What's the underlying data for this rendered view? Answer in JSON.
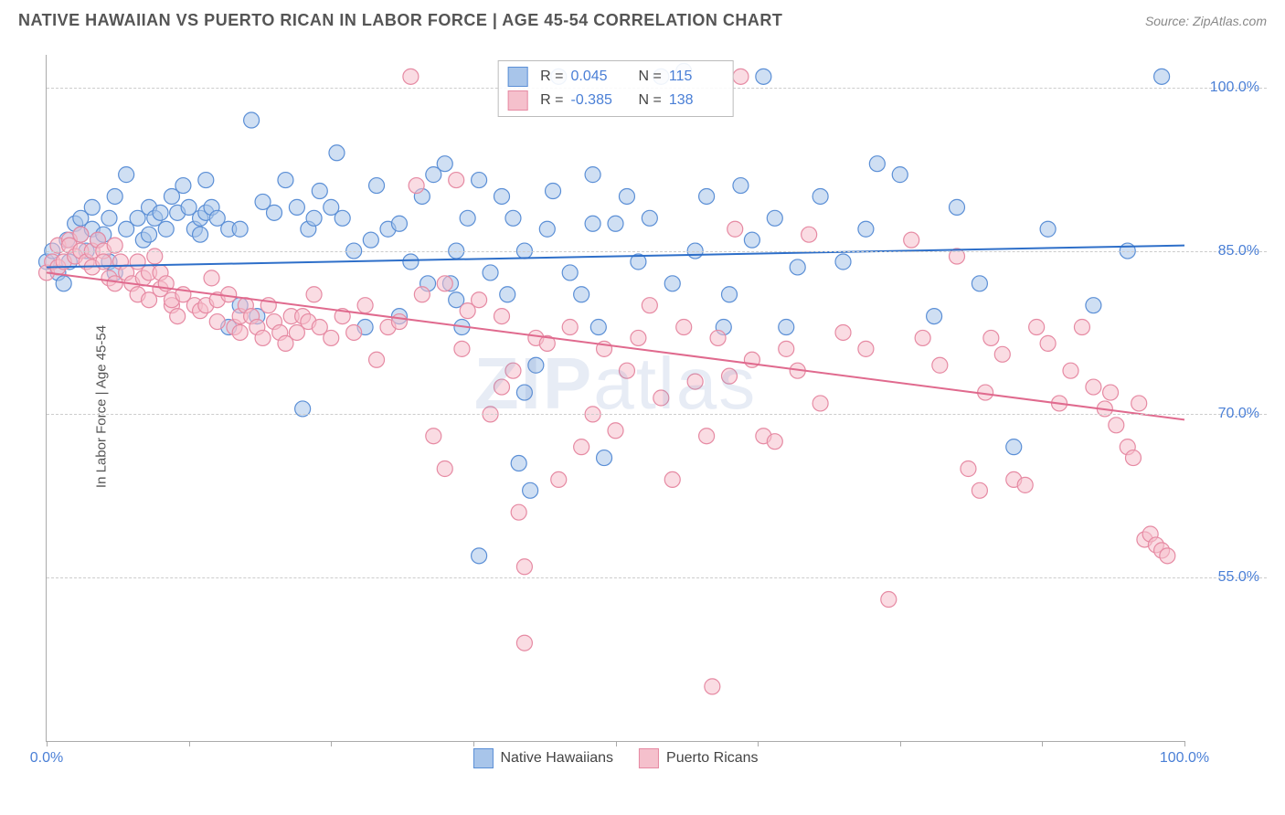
{
  "header": {
    "title": "NATIVE HAWAIIAN VS PUERTO RICAN IN LABOR FORCE | AGE 45-54 CORRELATION CHART",
    "source": "Source: ZipAtlas.com"
  },
  "chart": {
    "type": "scatter",
    "ylabel": "In Labor Force | Age 45-54",
    "xlim": [
      0,
      100
    ],
    "ylim": [
      40,
      103
    ],
    "xtick_labels": [
      {
        "pos": 0,
        "label": "0.0%"
      },
      {
        "pos": 100,
        "label": "100.0%"
      }
    ],
    "xtick_marks": [
      0,
      12.5,
      25,
      37.5,
      50,
      62.5,
      75,
      87.5,
      100
    ],
    "ytick_labels": [
      {
        "pos": 55,
        "label": "55.0%"
      },
      {
        "pos": 70,
        "label": "70.0%"
      },
      {
        "pos": 85,
        "label": "85.0%"
      },
      {
        "pos": 100,
        "label": "100.0%"
      }
    ],
    "grid_y": [
      55,
      70,
      85,
      100
    ],
    "grid_color": "#cccccc",
    "background_color": "#ffffff",
    "marker_radius": 8.5,
    "marker_opacity": 0.55,
    "line_width": 2,
    "series": [
      {
        "name": "Native Hawaiians",
        "color_fill": "#a8c5ea",
        "color_stroke": "#5b8fd6",
        "line_color": "#2e6fc9",
        "R": "0.045",
        "N": "115",
        "trend": {
          "x1": 0,
          "y1": 83.5,
          "x2": 100,
          "y2": 85.5
        },
        "points": [
          [
            0,
            84
          ],
          [
            0.5,
            85
          ],
          [
            1,
            83
          ],
          [
            1.5,
            82
          ],
          [
            1.8,
            86
          ],
          [
            2,
            84
          ],
          [
            2.5,
            87.5
          ],
          [
            3,
            86.5
          ],
          [
            3,
            88
          ],
          [
            3.5,
            85
          ],
          [
            4,
            87
          ],
          [
            4,
            89
          ],
          [
            4.5,
            86
          ],
          [
            5,
            86.5
          ],
          [
            5.5,
            88
          ],
          [
            5.5,
            84
          ],
          [
            6,
            90
          ],
          [
            6,
            83
          ],
          [
            7,
            87
          ],
          [
            7,
            92
          ],
          [
            8,
            88
          ],
          [
            8.5,
            86
          ],
          [
            9,
            89
          ],
          [
            9,
            86.5
          ],
          [
            9.5,
            88
          ],
          [
            10,
            88.5
          ],
          [
            10.5,
            87
          ],
          [
            11,
            90
          ],
          [
            11.5,
            88.5
          ],
          [
            12,
            91
          ],
          [
            12.5,
            89
          ],
          [
            13,
            87
          ],
          [
            13.5,
            86.5
          ],
          [
            13.5,
            88
          ],
          [
            14,
            88.5
          ],
          [
            14,
            91.5
          ],
          [
            14.5,
            89
          ],
          [
            15,
            88
          ],
          [
            16,
            87
          ],
          [
            16,
            78
          ],
          [
            17,
            87
          ],
          [
            17,
            80
          ],
          [
            18,
            97
          ],
          [
            18.5,
            79
          ],
          [
            19,
            89.5
          ],
          [
            20,
            88.5
          ],
          [
            21,
            91.5
          ],
          [
            22,
            89
          ],
          [
            22.5,
            70.5
          ],
          [
            23,
            87
          ],
          [
            23.5,
            88
          ],
          [
            24,
            90.5
          ],
          [
            25,
            89
          ],
          [
            25.5,
            94
          ],
          [
            26,
            88
          ],
          [
            27,
            85
          ],
          [
            28,
            78
          ],
          [
            28.5,
            86
          ],
          [
            29,
            91
          ],
          [
            30,
            87
          ],
          [
            31,
            79
          ],
          [
            31,
            87.5
          ],
          [
            32,
            84
          ],
          [
            33,
            90
          ],
          [
            33.5,
            82
          ],
          [
            34,
            92
          ],
          [
            35,
            93
          ],
          [
            35.5,
            82
          ],
          [
            36,
            85
          ],
          [
            36,
            80.5
          ],
          [
            36.5,
            78
          ],
          [
            37,
            88
          ],
          [
            38,
            57
          ],
          [
            38,
            91.5
          ],
          [
            39,
            83
          ],
          [
            40,
            90
          ],
          [
            40.5,
            81
          ],
          [
            41,
            88
          ],
          [
            41.5,
            65.5
          ],
          [
            42,
            85
          ],
          [
            42,
            72
          ],
          [
            42.5,
            63
          ],
          [
            43,
            74.5
          ],
          [
            44,
            87
          ],
          [
            44.5,
            90.5
          ],
          [
            45,
            101
          ],
          [
            46,
            83
          ],
          [
            47,
            81
          ],
          [
            48,
            92
          ],
          [
            48,
            87.5
          ],
          [
            48.5,
            78
          ],
          [
            49,
            66
          ],
          [
            50,
            87.5
          ],
          [
            51,
            90
          ],
          [
            52,
            84
          ],
          [
            53,
            88
          ],
          [
            54,
            101
          ],
          [
            55,
            82
          ],
          [
            56,
            101.5
          ],
          [
            57,
            85
          ],
          [
            58,
            90
          ],
          [
            59.5,
            78
          ],
          [
            60,
            81
          ],
          [
            61,
            91
          ],
          [
            62,
            86
          ],
          [
            63,
            101
          ],
          [
            64,
            88
          ],
          [
            65,
            78
          ],
          [
            66,
            83.5
          ],
          [
            68,
            90
          ],
          [
            70,
            84
          ],
          [
            72,
            87
          ],
          [
            73,
            93
          ],
          [
            75,
            92
          ],
          [
            78,
            79
          ],
          [
            80,
            89
          ],
          [
            82,
            82
          ],
          [
            85,
            67
          ],
          [
            88,
            87
          ],
          [
            92,
            80
          ],
          [
            95,
            85
          ],
          [
            98,
            101
          ]
        ]
      },
      {
        "name": "Puerto Ricans",
        "color_fill": "#f5c0cc",
        "color_stroke": "#e68aa3",
        "line_color": "#e06a8e",
        "R": "-0.385",
        "N": "138",
        "trend": {
          "x1": 0,
          "y1": 83,
          "x2": 100,
          "y2": 69.5
        },
        "points": [
          [
            0,
            83
          ],
          [
            0.5,
            84
          ],
          [
            1,
            83.5
          ],
          [
            1,
            85.5
          ],
          [
            1.5,
            84
          ],
          [
            2,
            86
          ],
          [
            2,
            85.5
          ],
          [
            2.5,
            84.5
          ],
          [
            3,
            85
          ],
          [
            3,
            86.5
          ],
          [
            3.5,
            84
          ],
          [
            4,
            85
          ],
          [
            4,
            83.5
          ],
          [
            4.5,
            86
          ],
          [
            5,
            85
          ],
          [
            5,
            84
          ],
          [
            5.5,
            82.5
          ],
          [
            6,
            85.5
          ],
          [
            6,
            82
          ],
          [
            6.5,
            84
          ],
          [
            7,
            83
          ],
          [
            7.5,
            82
          ],
          [
            8,
            81
          ],
          [
            8,
            84
          ],
          [
            8.5,
            82.5
          ],
          [
            9,
            83
          ],
          [
            9,
            80.5
          ],
          [
            9.5,
            84.5
          ],
          [
            10,
            83
          ],
          [
            10,
            81.5
          ],
          [
            10.5,
            82
          ],
          [
            11,
            80
          ],
          [
            11,
            80.5
          ],
          [
            11.5,
            79
          ],
          [
            12,
            81
          ],
          [
            13,
            80
          ],
          [
            13.5,
            79.5
          ],
          [
            14,
            80
          ],
          [
            14.5,
            82.5
          ],
          [
            15,
            80.5
          ],
          [
            15,
            78.5
          ],
          [
            16,
            81
          ],
          [
            16.5,
            78
          ],
          [
            17,
            79
          ],
          [
            17,
            77.5
          ],
          [
            17.5,
            80
          ],
          [
            18,
            79
          ],
          [
            18.5,
            78
          ],
          [
            19,
            77
          ],
          [
            19.5,
            80
          ],
          [
            20,
            78.5
          ],
          [
            20.5,
            77.5
          ],
          [
            21,
            76.5
          ],
          [
            21.5,
            79
          ],
          [
            22,
            77.5
          ],
          [
            22.5,
            79
          ],
          [
            23,
            78.5
          ],
          [
            23.5,
            81
          ],
          [
            24,
            78
          ],
          [
            25,
            77
          ],
          [
            26,
            79
          ],
          [
            27,
            77.5
          ],
          [
            28,
            80
          ],
          [
            29,
            75
          ],
          [
            30,
            78
          ],
          [
            31,
            78.5
          ],
          [
            32,
            101
          ],
          [
            32.5,
            91
          ],
          [
            33,
            81
          ],
          [
            34,
            68
          ],
          [
            35,
            82
          ],
          [
            35,
            65
          ],
          [
            36,
            91.5
          ],
          [
            36.5,
            76
          ],
          [
            37,
            79.5
          ],
          [
            38,
            80.5
          ],
          [
            39,
            70
          ],
          [
            40,
            79
          ],
          [
            40,
            72.5
          ],
          [
            41,
            74
          ],
          [
            41.5,
            61
          ],
          [
            42,
            56
          ],
          [
            42,
            49
          ],
          [
            43,
            77
          ],
          [
            44,
            76.5
          ],
          [
            45,
            64
          ],
          [
            46,
            78
          ],
          [
            47,
            67
          ],
          [
            48,
            70
          ],
          [
            49,
            76
          ],
          [
            50,
            68.5
          ],
          [
            51,
            74
          ],
          [
            52,
            77
          ],
          [
            53,
            80
          ],
          [
            54,
            71.5
          ],
          [
            55,
            64
          ],
          [
            56,
            78
          ],
          [
            57,
            73
          ],
          [
            58,
            68
          ],
          [
            58.5,
            45
          ],
          [
            59,
            77
          ],
          [
            60,
            73.5
          ],
          [
            60.5,
            87
          ],
          [
            61,
            101
          ],
          [
            62,
            75
          ],
          [
            63,
            68
          ],
          [
            64,
            67.5
          ],
          [
            65,
            76
          ],
          [
            66,
            74
          ],
          [
            67,
            86.5
          ],
          [
            68,
            71
          ],
          [
            70,
            77.5
          ],
          [
            72,
            76
          ],
          [
            74,
            53
          ],
          [
            76,
            86
          ],
          [
            77,
            77
          ],
          [
            78.5,
            74.5
          ],
          [
            80,
            84.5
          ],
          [
            81,
            65
          ],
          [
            82,
            63
          ],
          [
            82.5,
            72
          ],
          [
            83,
            77
          ],
          [
            84,
            75.5
          ],
          [
            85,
            64
          ],
          [
            86,
            63.5
          ],
          [
            87,
            78
          ],
          [
            88,
            76.5
          ],
          [
            89,
            71
          ],
          [
            90,
            74
          ],
          [
            91,
            78
          ],
          [
            92,
            72.5
          ],
          [
            93,
            70.5
          ],
          [
            93.5,
            72
          ],
          [
            94,
            69
          ],
          [
            95,
            67
          ],
          [
            95.5,
            66
          ],
          [
            96,
            71
          ],
          [
            96.5,
            58.5
          ],
          [
            97,
            59
          ],
          [
            97.5,
            58
          ],
          [
            98,
            57.5
          ],
          [
            98.5,
            57
          ]
        ]
      }
    ],
    "legend_bottom": [
      {
        "label": "Native Hawaiians",
        "fill": "#a8c5ea",
        "stroke": "#5b8fd6"
      },
      {
        "label": "Puerto Ricans",
        "fill": "#f5c0cc",
        "stroke": "#e68aa3"
      }
    ],
    "watermark": {
      "bold": "ZIP",
      "rest": "atlas"
    }
  }
}
